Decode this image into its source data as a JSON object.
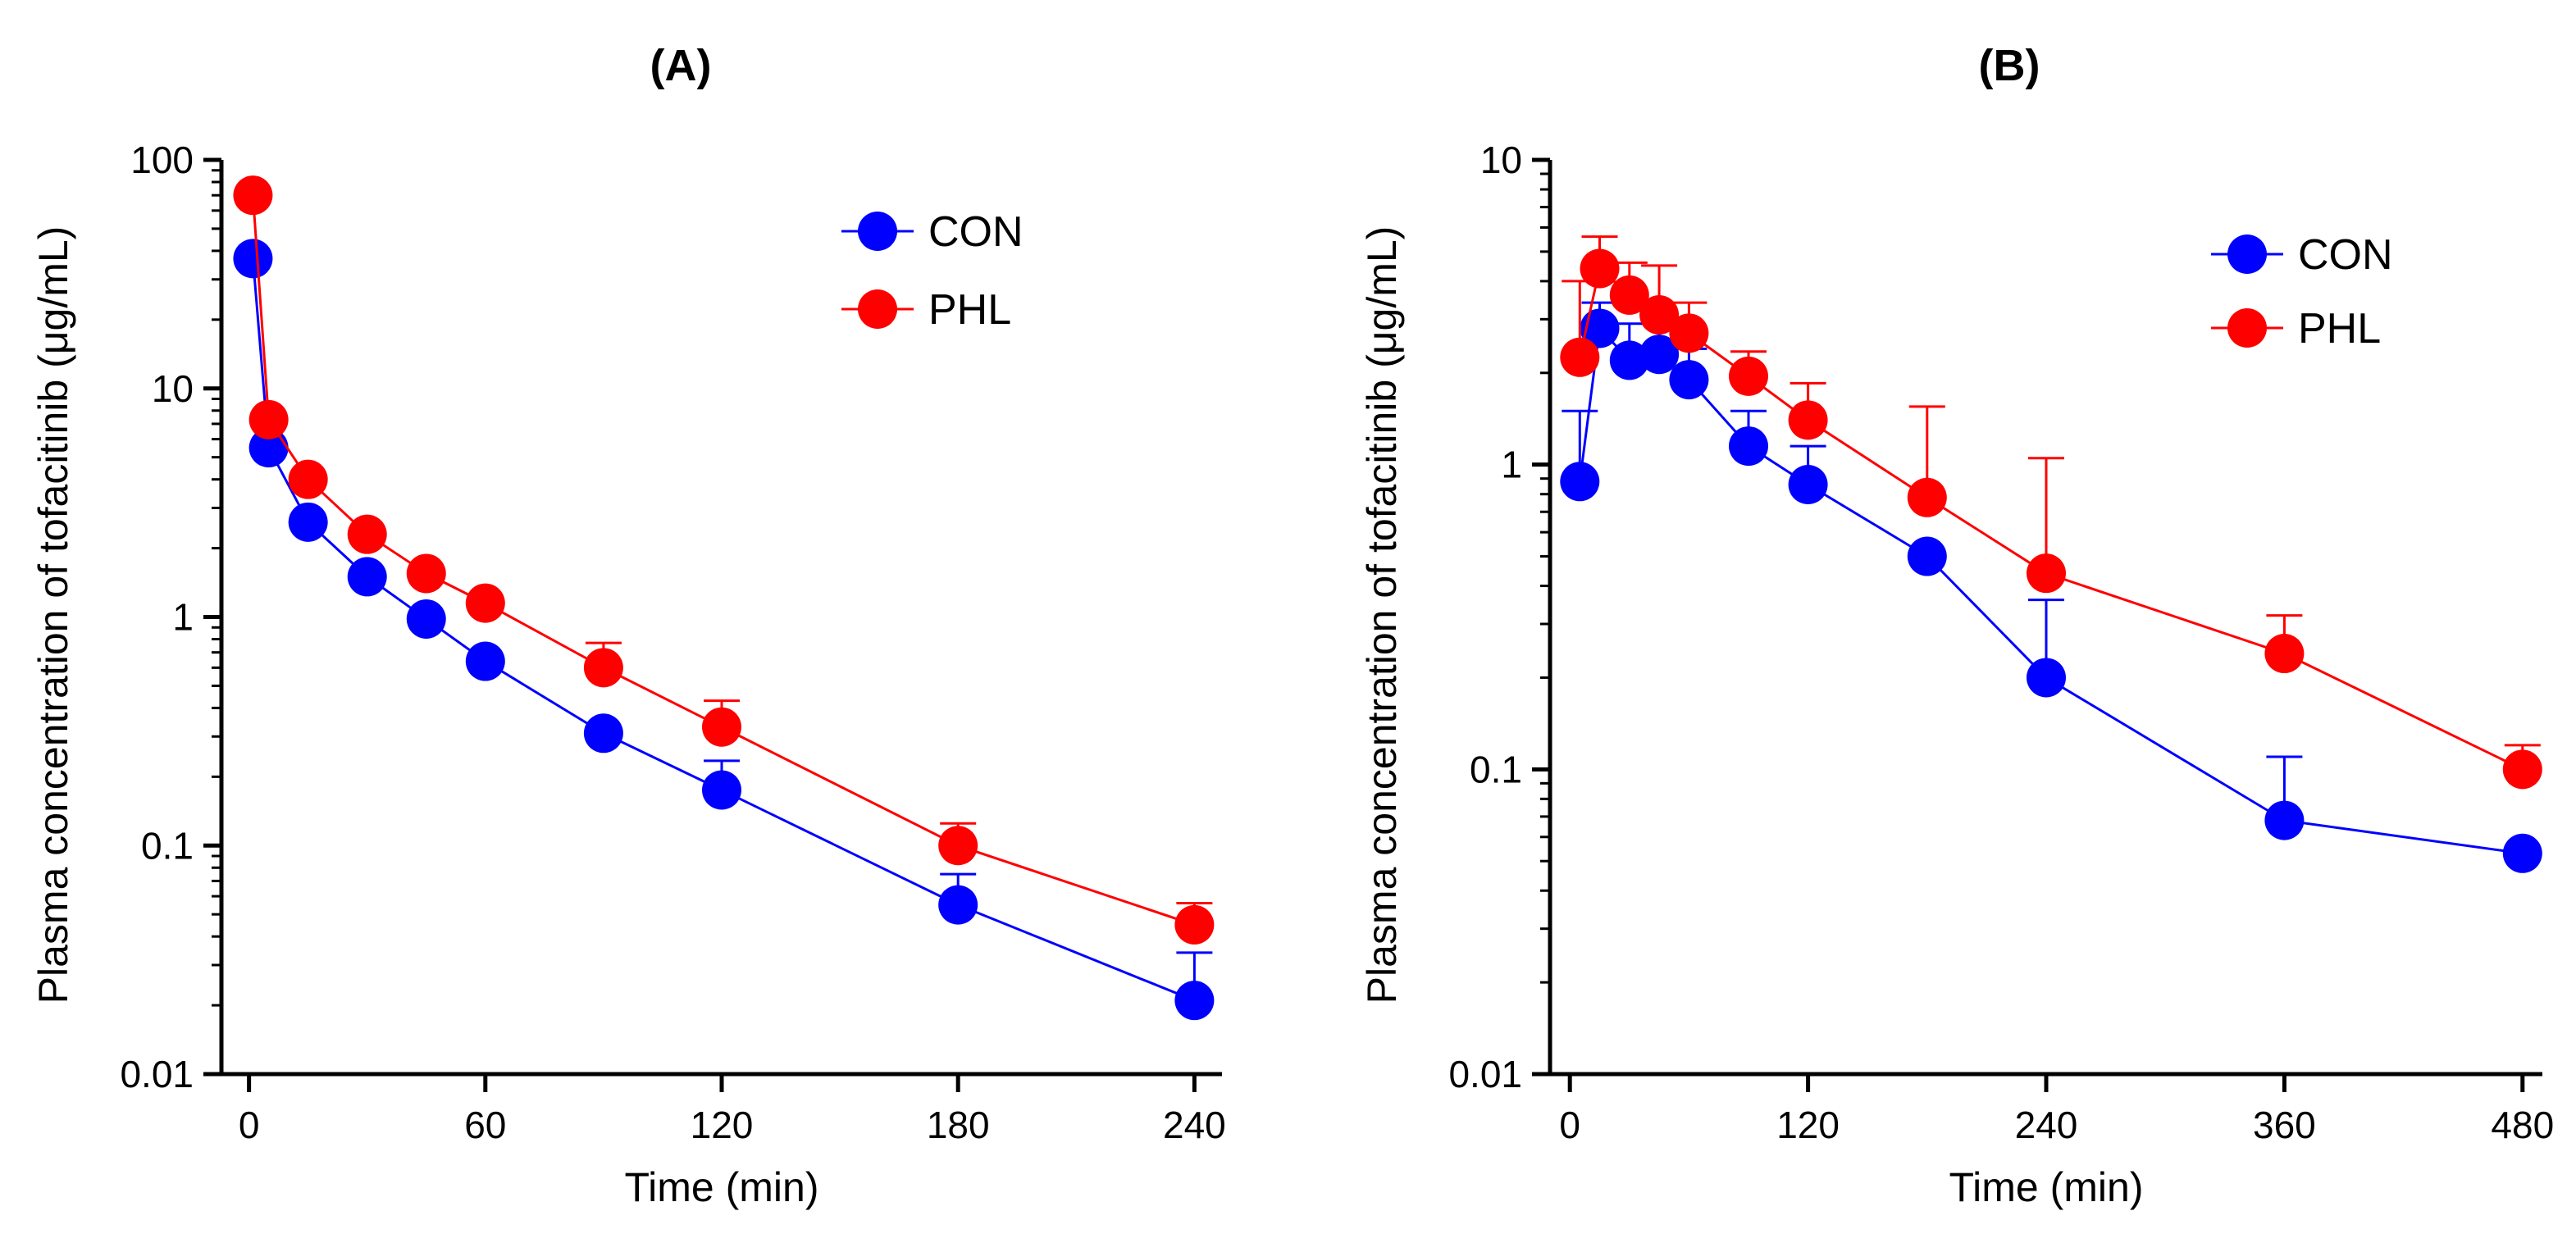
{
  "chart_data": [
    {
      "type": "line",
      "panel_label": "(A)",
      "xlabel": "Time (min)",
      "ylabel": "Plasma concentration of tofacitinib (μg/mL)",
      "yscale": "log",
      "xlim": [
        -7,
        247
      ],
      "ylim": [
        0.01,
        100
      ],
      "xticks": [
        0,
        60,
        120,
        180,
        240
      ],
      "xtick_labels": [
        "0",
        "60",
        "120",
        "180",
        "240"
      ],
      "yticks": [
        0.01,
        0.1,
        1,
        10,
        100
      ],
      "ytick_labels": [
        "0.01",
        "0.1",
        "1",
        "10",
        "100"
      ],
      "legend_position": "top-right",
      "series": [
        {
          "name": "CON",
          "color": "#0000ff",
          "x": [
            1,
            5,
            15,
            30,
            45,
            60,
            90,
            120,
            180,
            240
          ],
          "values": [
            37,
            5.5,
            2.6,
            1.5,
            0.98,
            0.64,
            0.31,
            0.175,
            0.055,
            0.021
          ],
          "error_upper": [
            null,
            null,
            null,
            null,
            null,
            null,
            null,
            0.235,
            0.075,
            0.034
          ]
        },
        {
          "name": "PHL",
          "color": "#ff0000",
          "x": [
            1,
            5,
            15,
            30,
            45,
            60,
            90,
            120,
            180,
            240
          ],
          "values": [
            70,
            7.3,
            4.0,
            2.3,
            1.55,
            1.15,
            0.6,
            0.33,
            0.1,
            0.045
          ],
          "error_upper": [
            null,
            null,
            null,
            null,
            null,
            null,
            0.77,
            0.43,
            0.125,
            0.056
          ]
        }
      ]
    },
    {
      "type": "line",
      "panel_label": "(B)",
      "xlabel": "Time (min)",
      "ylabel": "Plasma concentration of tofacitinib (μg/mL)",
      "yscale": "log",
      "xlim": [
        -10,
        490
      ],
      "ylim": [
        0.01,
        10
      ],
      "xticks": [
        0,
        120,
        240,
        360,
        480
      ],
      "xtick_labels": [
        "0",
        "120",
        "240",
        "360",
        "480"
      ],
      "yticks": [
        0.01,
        0.1,
        1,
        10
      ],
      "ytick_labels": [
        "0.01",
        "0.1",
        "1",
        "10"
      ],
      "legend_position": "top-right",
      "series": [
        {
          "name": "CON",
          "color": "#0000ff",
          "x": [
            5,
            15,
            30,
            45,
            60,
            90,
            120,
            180,
            240,
            360,
            480
          ],
          "values": [
            0.88,
            2.8,
            2.2,
            2.3,
            1.9,
            1.15,
            0.86,
            0.5,
            0.2,
            0.068,
            0.053
          ],
          "error_upper": [
            1.5,
            3.4,
            2.9,
            2.9,
            2.4,
            1.5,
            1.15,
            null,
            0.36,
            0.11,
            null
          ]
        },
        {
          "name": "PHL",
          "color": "#ff0000",
          "x": [
            5,
            15,
            30,
            45,
            60,
            90,
            120,
            180,
            240,
            360,
            480
          ],
          "values": [
            2.25,
            4.4,
            3.6,
            3.1,
            2.7,
            1.95,
            1.4,
            0.78,
            0.44,
            0.24,
            0.1
          ],
          "error_upper": [
            4.0,
            5.6,
            4.6,
            4.5,
            3.4,
            2.35,
            1.85,
            1.55,
            1.05,
            0.32,
            0.12
          ]
        }
      ]
    }
  ]
}
